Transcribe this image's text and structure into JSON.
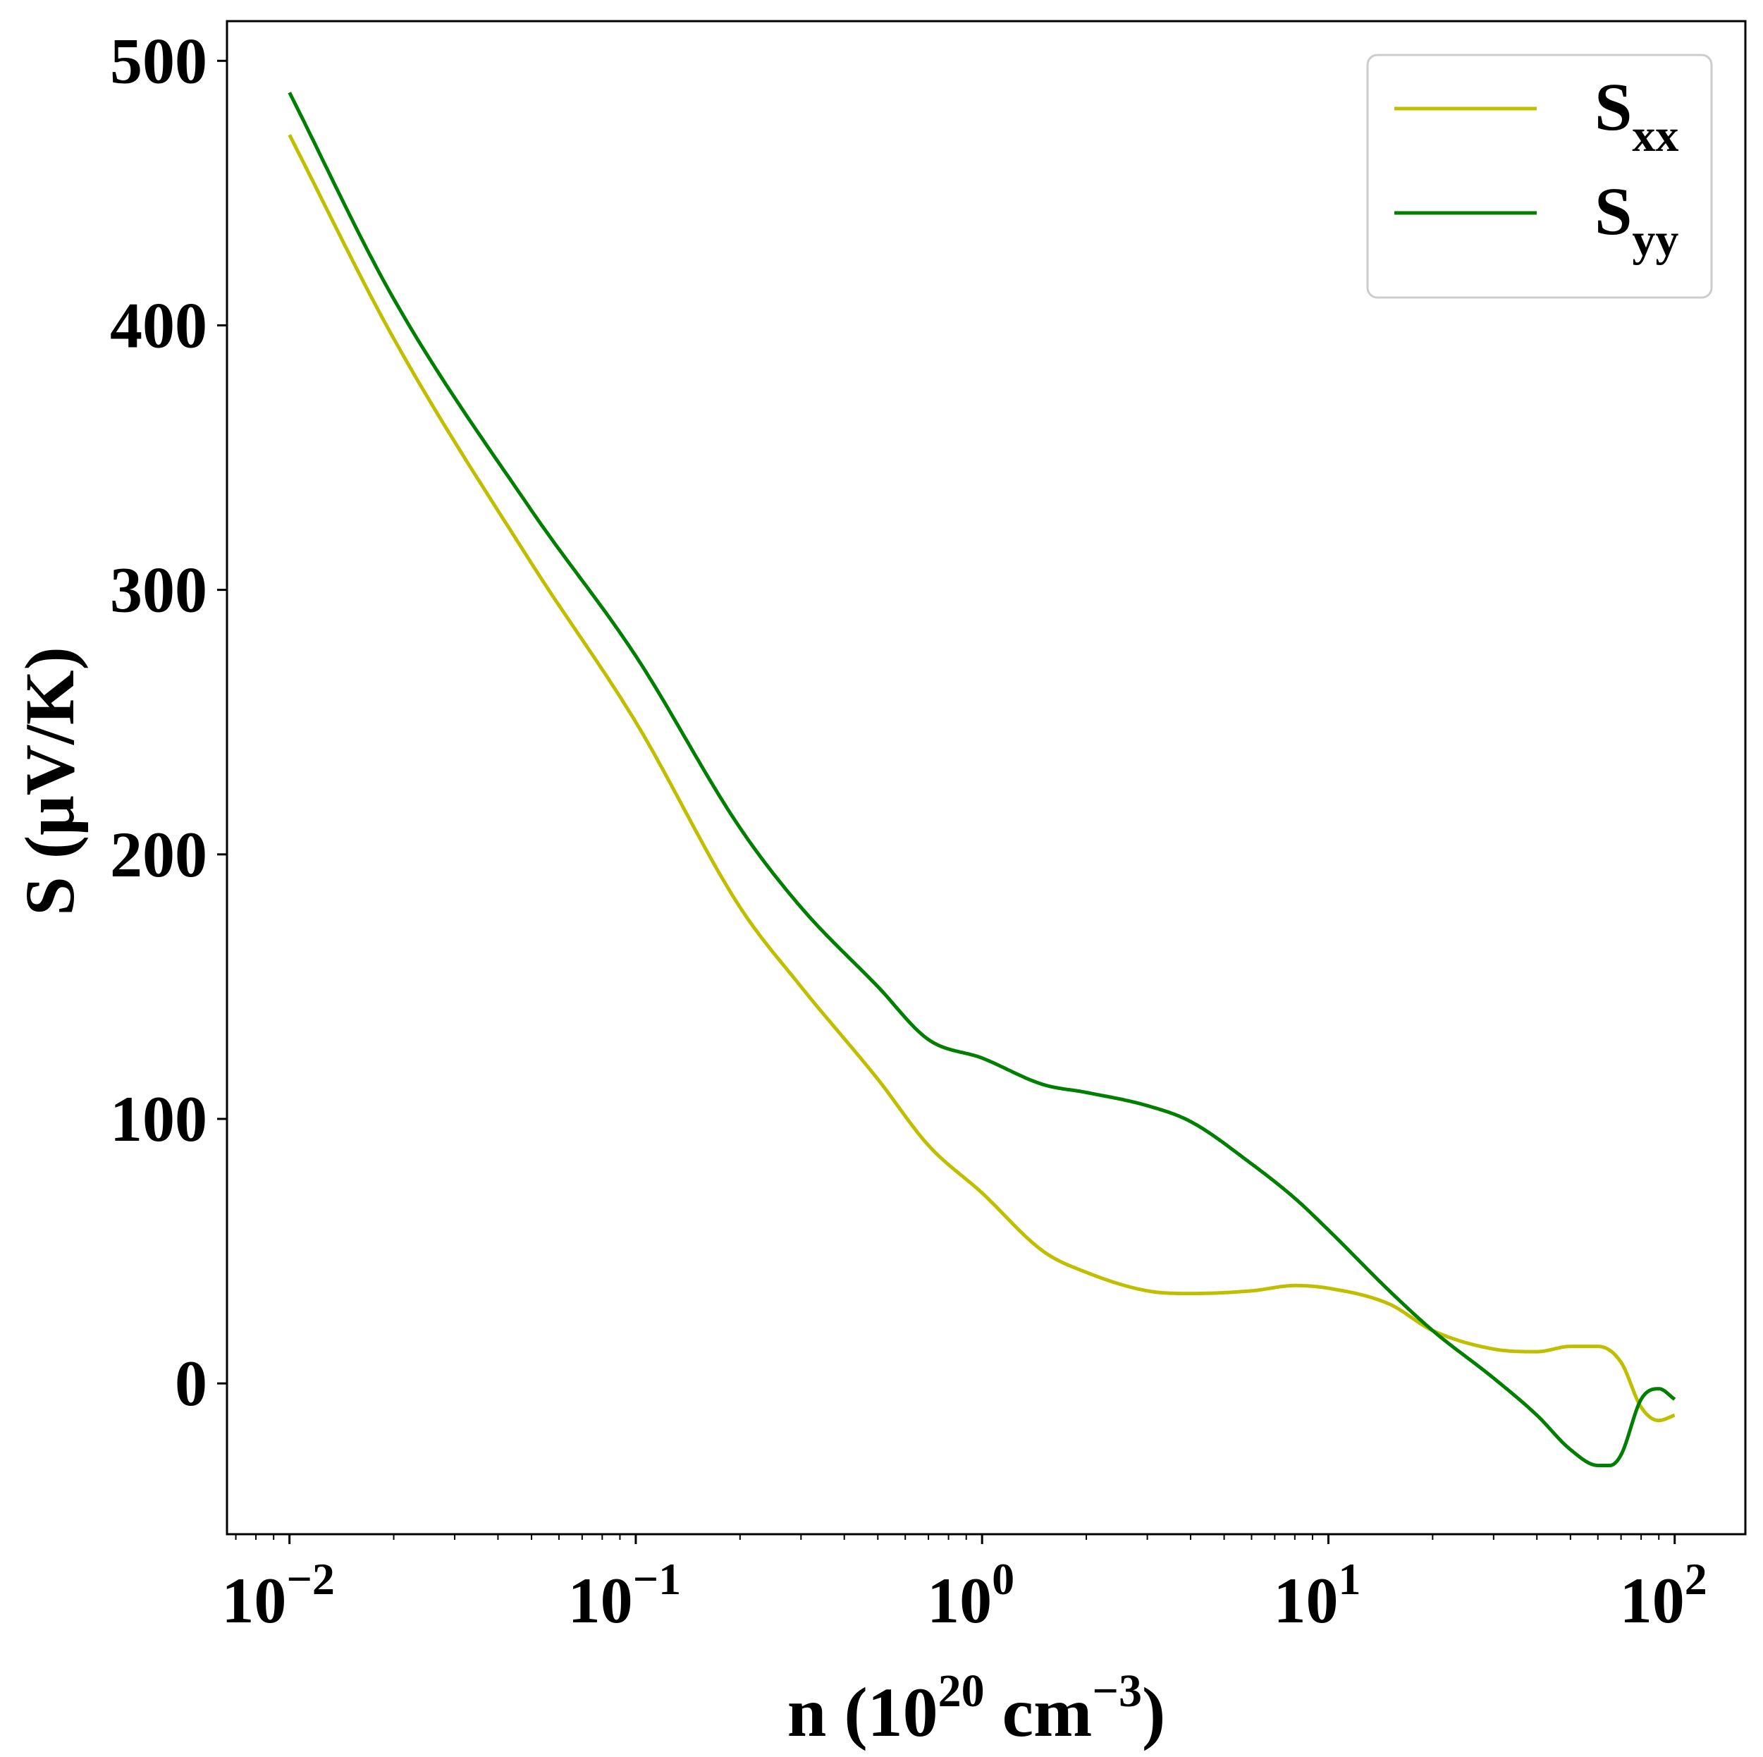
{
  "chart_data": {
    "type": "line",
    "xscale": "log",
    "xlim": [
      0.0066,
      160
    ],
    "ylim": [
      -57,
      515
    ],
    "grid": false,
    "legend_position": "top-right",
    "xlabel": {
      "base": "n (10",
      "sup1": "20",
      "mid": " cm",
      "sup2": "−3",
      "end": ")"
    },
    "ylabel": "S (μV/K)",
    "x_ticks": [
      {
        "value": 0.01,
        "base": "10",
        "exp": "−2"
      },
      {
        "value": 0.1,
        "base": "10",
        "exp": "−1"
      },
      {
        "value": 1,
        "base": "10",
        "exp": "0"
      },
      {
        "value": 10,
        "base": "10",
        "exp": "1"
      },
      {
        "value": 100,
        "base": "10",
        "exp": "2"
      }
    ],
    "y_ticks": [
      {
        "value": 0,
        "label": "0"
      },
      {
        "value": 100,
        "label": "100"
      },
      {
        "value": 200,
        "label": "200"
      },
      {
        "value": 300,
        "label": "300"
      },
      {
        "value": 400,
        "label": "400"
      },
      {
        "value": 500,
        "label": "500"
      }
    ],
    "series": [
      {
        "key": "sxx",
        "name_base": "S",
        "name_sub": "xx",
        "color": "#bfbf00",
        "x": [
          0.01,
          0.02,
          0.05,
          0.1,
          0.2,
          0.3,
          0.5,
          0.7,
          1,
          1.5,
          2,
          3,
          4,
          6,
          8,
          10,
          15,
          20,
          30,
          40,
          50,
          60,
          70,
          80,
          90,
          100
        ],
        "y": [
          472,
          395,
          310,
          250,
          180,
          150,
          115,
          90,
          72,
          50,
          42,
          35,
          34,
          35,
          37,
          36,
          30,
          20,
          13,
          12,
          14,
          14,
          8,
          -9,
          -14,
          -12
        ]
      },
      {
        "key": "syy",
        "name_base": "S",
        "name_sub": "yy",
        "color": "#007f00",
        "x": [
          0.01,
          0.02,
          0.05,
          0.1,
          0.2,
          0.3,
          0.5,
          0.7,
          1,
          1.5,
          2,
          3,
          4,
          6,
          8,
          10,
          15,
          20,
          30,
          40,
          50,
          60,
          65,
          70,
          80,
          90,
          100
        ],
        "y": [
          488,
          410,
          330,
          275,
          210,
          180,
          150,
          130,
          123,
          113,
          110,
          105,
          99,
          83,
          70,
          58,
          35,
          20,
          2,
          -12,
          -25,
          -31,
          -31,
          -27,
          -6,
          -2,
          -6
        ]
      }
    ]
  }
}
